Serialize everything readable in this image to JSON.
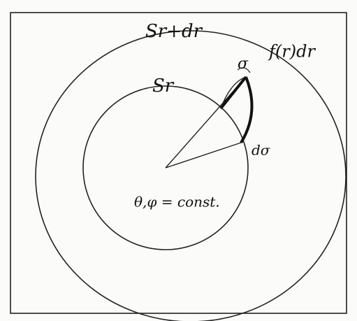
{
  "labels": {
    "outer_shell": "Sr+dr",
    "inner_shell": "Sr",
    "sigma": "σ",
    "flux": "f(r)dr",
    "area_element": "dσ",
    "condition": "θ,φ = const."
  }
}
